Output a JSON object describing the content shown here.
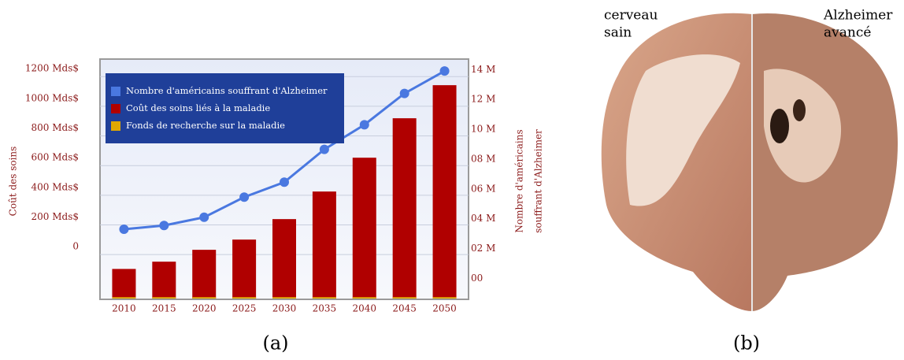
{
  "chart_data": {
    "type": "bar",
    "ylabel": "Coût des soins",
    "y2label": [
      "Nombre d'américains",
      "souffrant d'Alzheimer"
    ],
    "categories": [
      "2010",
      "2015",
      "2020",
      "2025",
      "2030",
      "2035",
      "2040",
      "2045",
      "2050"
    ],
    "series": [
      {
        "name": "Nombre d'américains souffrant d'Alzheimer",
        "type": "line",
        "axis": "y2",
        "color": "#4a78e0",
        "values": [
          3.3,
          3.55,
          4.1,
          5.45,
          6.45,
          8.65,
          10.3,
          12.4,
          13.9
        ]
      },
      {
        "name": "Coût des soins liés à la maladie",
        "type": "bar",
        "color": "#b00000",
        "values": [
          -150,
          -101,
          -21,
          48,
          186,
          372,
          600,
          866,
          1089
        ]
      },
      {
        "name": "Fonds de recherche sur la maladie",
        "type": "bar",
        "color": "#e0a800",
        "values": [
          -340,
          -340,
          -340,
          -340,
          -340,
          -340,
          -340,
          -340,
          -340
        ]
      }
    ],
    "ylim": [
      -355,
      1265
    ],
    "yticks": [
      0,
      {
        "value": 200,
        "label": "200 Mds$"
      },
      {
        "value": 400,
        "label": "400 Mds$"
      },
      {
        "value": 600,
        "label": "600 Mds$"
      },
      {
        "value": 800,
        "label": "800 Mds$"
      },
      {
        "value": 1000,
        "label": "1000 Mds$"
      },
      {
        "value": 1200,
        "label": "1200 Mds$"
      }
    ],
    "y2lim": [
      -1.4,
      14.7
    ],
    "y2ticks": [
      {
        "value": 0,
        "label": "00"
      },
      {
        "value": 2,
        "label": "02 M"
      },
      {
        "value": 4,
        "label": "04 M"
      },
      {
        "value": 6,
        "label": "06 M"
      },
      {
        "value": 8,
        "label": "08 M"
      },
      {
        "value": 10,
        "label": "10 M"
      },
      {
        "value": 12,
        "label": "12 M"
      },
      {
        "value": 14,
        "label": "14 M"
      }
    ],
    "grid": true,
    "legend": "upper left"
  },
  "captions": [
    "(a)",
    "(b)"
  ],
  "image_labels": {
    "left": [
      "cerveau",
      "sain"
    ],
    "right": [
      "Alzheimer",
      "avancé"
    ]
  }
}
